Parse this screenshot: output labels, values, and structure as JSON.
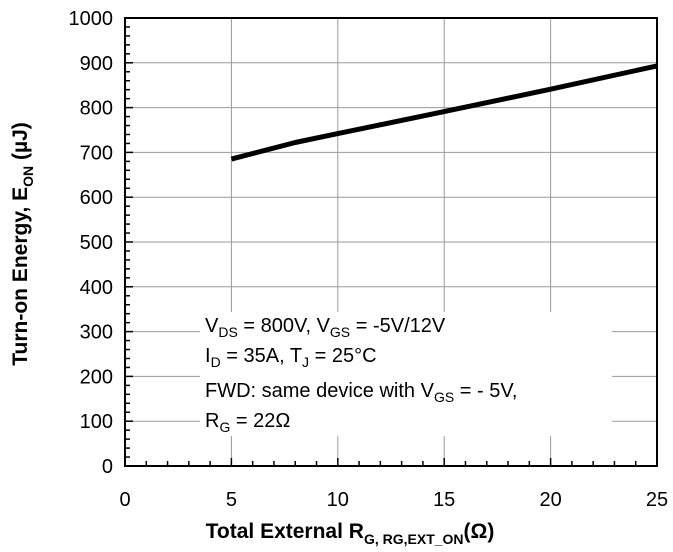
{
  "chart_data": {
    "type": "line",
    "xlim": [
      0,
      25
    ],
    "ylim": [
      0,
      1000
    ],
    "x_ticks": [
      0,
      5,
      10,
      15,
      20,
      25
    ],
    "y_ticks": [
      0,
      100,
      200,
      300,
      400,
      500,
      600,
      700,
      800,
      900,
      1000
    ],
    "x_tick_labels": [
      "0",
      "5",
      "10",
      "15",
      "20",
      "25"
    ],
    "y_tick_labels": [
      "0",
      "100",
      "200",
      "300",
      "400",
      "500",
      "600",
      "700",
      "800",
      "900",
      "1000"
    ],
    "grid": true,
    "xlabel": {
      "main": "Total External R",
      "sub": "G, RG,EXT_ON",
      "unit": "(Ω)"
    },
    "ylabel": {
      "main": "Turn-on Energy, E",
      "sub": "ON",
      "unit": " (µJ)"
    },
    "series": [
      {
        "color": "#000000",
        "x": [
          5,
          8,
          10,
          15,
          20,
          25
        ],
        "y": [
          685,
          722,
          742,
          791,
          841,
          893
        ]
      }
    ],
    "annotation": {
      "line1": {
        "a": "V",
        "a_sub": "DS",
        "b": " = 800V, V",
        "b_sub": "GS",
        "c": " = -5V/12V"
      },
      "line2": {
        "a": "I",
        "a_sub": "D",
        "b": " = 35A, T",
        "b_sub": "J",
        "c": " = 25°C"
      },
      "line3": {
        "a": "FWD: same device with V",
        "a_sub": "GS",
        "b": " = - 5V,"
      },
      "line4": {
        "a": "R",
        "a_sub": "G",
        "b": " = 22Ω"
      }
    }
  }
}
